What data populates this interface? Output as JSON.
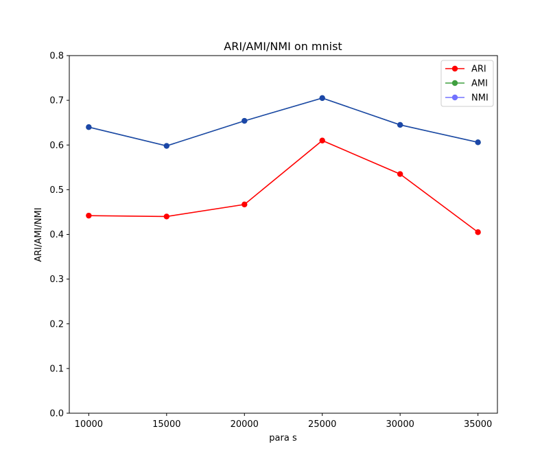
{
  "chart_data": {
    "type": "line",
    "title": "ARI/AMI/NMI on mnist",
    "xlabel": "para s",
    "ylabel": "ARI/AMI/NMI",
    "x": [
      10000,
      15000,
      20000,
      25000,
      30000,
      35000
    ],
    "xticks": [
      "10000",
      "15000",
      "20000",
      "25000",
      "30000",
      "35000"
    ],
    "yticks": [
      "0.0",
      "0.1",
      "0.2",
      "0.3",
      "0.4",
      "0.5",
      "0.6",
      "0.7",
      "0.8"
    ],
    "ylim": [
      0,
      0.8
    ],
    "xlim": [
      8750,
      36250
    ],
    "grid": false,
    "legend_position": "top-right",
    "series": [
      {
        "name": "ARI",
        "color": "#ff0000",
        "opacity": 1.0,
        "values": [
          0.442,
          0.44,
          0.467,
          0.61,
          0.535,
          0.405
        ]
      },
      {
        "name": "AMI",
        "color": "#008000",
        "opacity": 0.75,
        "values": [
          0.64,
          0.598,
          0.654,
          0.705,
          0.645,
          0.606
        ]
      },
      {
        "name": "NMI",
        "color": "#0000ff",
        "opacity": 0.55,
        "values": [
          0.64,
          0.598,
          0.654,
          0.705,
          0.645,
          0.606
        ]
      }
    ]
  }
}
